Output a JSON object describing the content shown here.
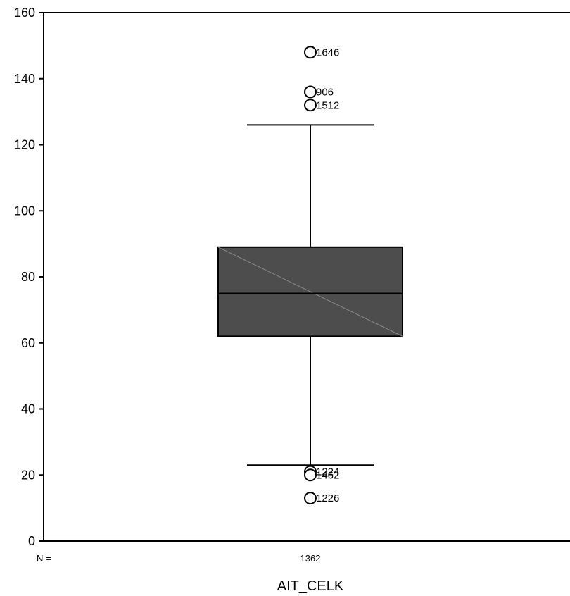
{
  "chart_data": {
    "type": "box",
    "category": "AIT_CELK",
    "n_label": "N =",
    "n_value": "1362",
    "ylim": [
      0,
      160
    ],
    "y_ticks": [
      0,
      20,
      40,
      60,
      80,
      100,
      120,
      140,
      160
    ],
    "box": {
      "whisker_low": 23,
      "q1": 62,
      "median": 75,
      "q3": 89,
      "whisker_high": 126
    },
    "outliers": [
      {
        "value": 148,
        "label": "1646"
      },
      {
        "value": 136,
        "label": "906"
      },
      {
        "value": 132,
        "label": "1512"
      },
      {
        "value": 21,
        "label": "1224"
      },
      {
        "value": 20,
        "label": "1462"
      },
      {
        "value": 13,
        "label": "1226"
      }
    ],
    "colors": {
      "box_fill": "#4d4d4d",
      "line": "#000000"
    }
  }
}
